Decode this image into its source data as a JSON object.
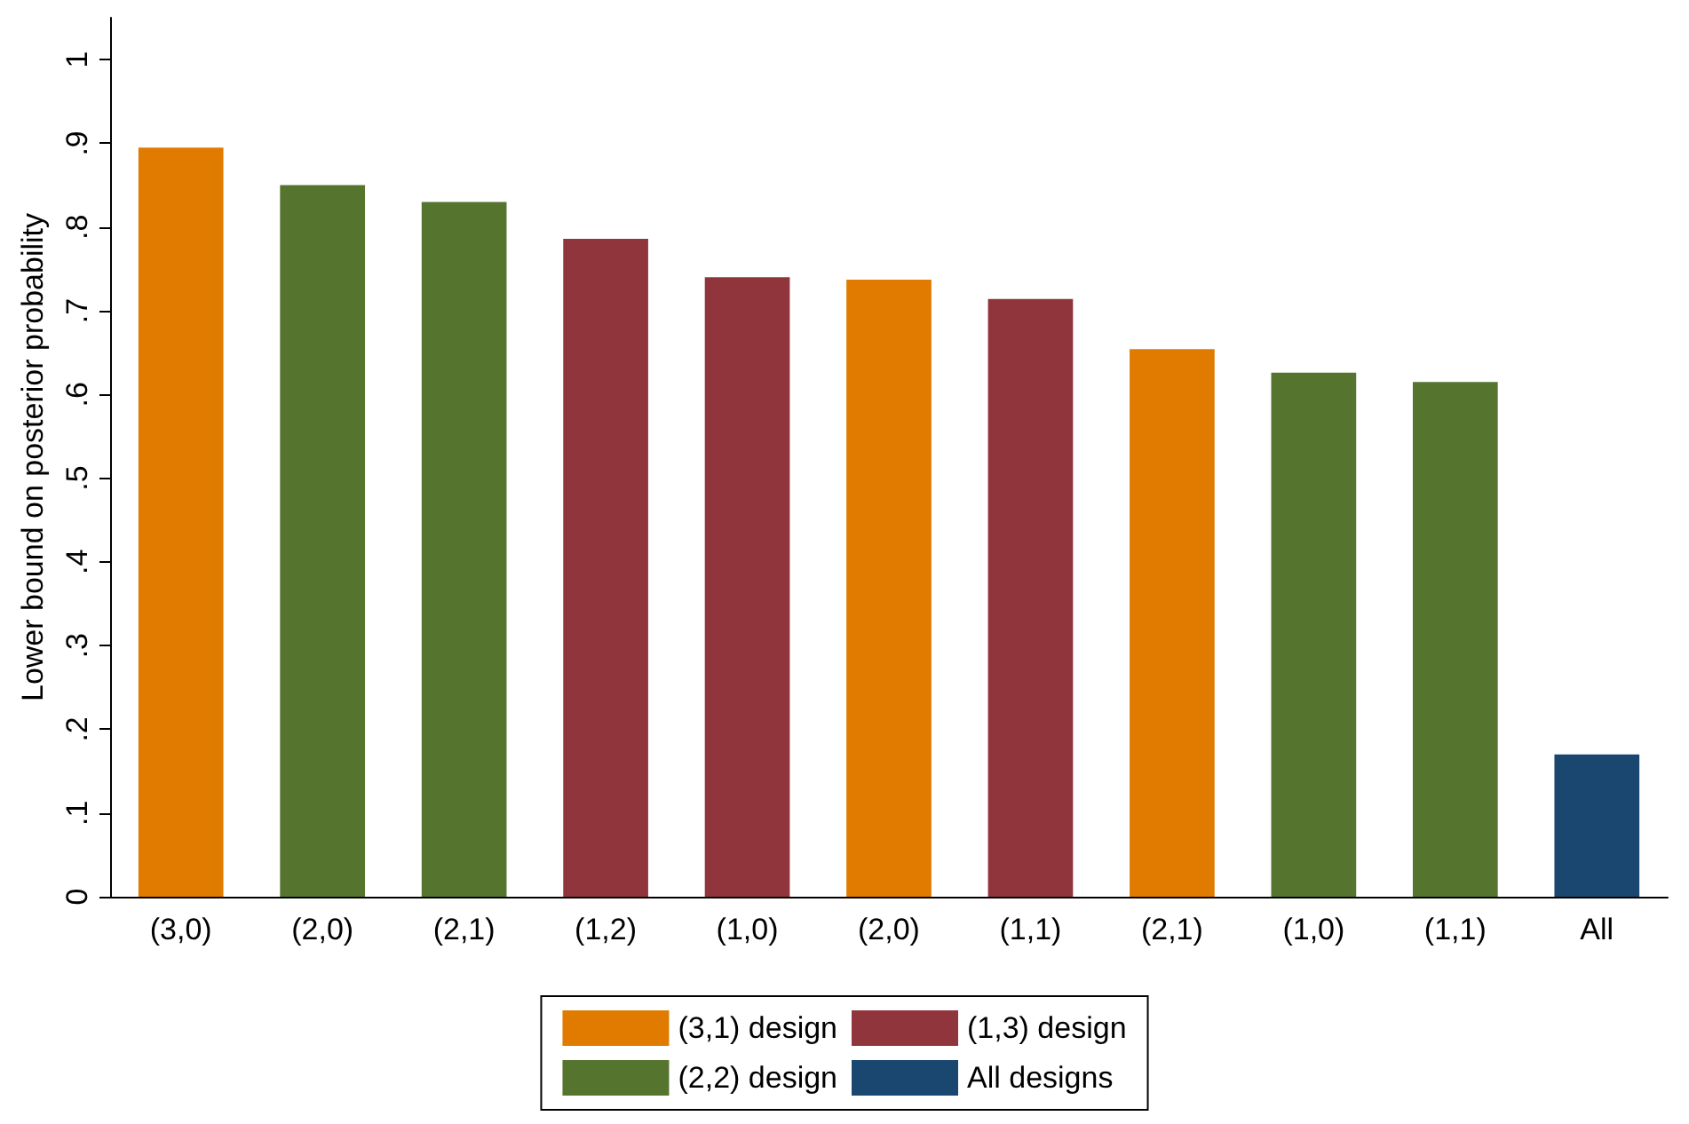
{
  "chart_data": {
    "type": "bar",
    "ylabel": "Lower bound on posterior probability",
    "categories": [
      "(3,0)",
      "(2,0)",
      "(2,1)",
      "(1,2)",
      "(1,0)",
      "(2,0)",
      "(1,1)",
      "(2,1)",
      "(1,0)",
      "(1,1)",
      "All"
    ],
    "stacked": true,
    "series": [
      {
        "name": "(3,1) design",
        "color": "#e07b00",
        "values": [
          0.895,
          null,
          null,
          null,
          null,
          0.737,
          null,
          0.654,
          null,
          null,
          null
        ]
      },
      {
        "name": "(1,3) design",
        "color": "#90353b",
        "values": [
          null,
          null,
          null,
          0.786,
          0.74,
          null,
          0.714,
          null,
          null,
          null,
          null
        ]
      },
      {
        "name": "(2,2) design",
        "color": "#55752f",
        "values": [
          null,
          0.85,
          0.83,
          null,
          null,
          null,
          null,
          null,
          0.626,
          0.615,
          null
        ]
      },
      {
        "name": "All designs",
        "color": "#1a476f",
        "values": [
          null,
          null,
          null,
          null,
          null,
          null,
          null,
          null,
          null,
          null,
          0.17
        ]
      }
    ],
    "ylim": [
      0,
      1.05
    ],
    "yticks": [
      0,
      {
        "value": 0.1,
        "label": ".1"
      },
      {
        "value": 0.2,
        "label": ".2"
      },
      {
        "value": 0.3,
        "label": ".3"
      },
      {
        "value": 0.4,
        "label": ".4"
      },
      {
        "value": 0.5,
        "label": ".5"
      },
      {
        "value": 0.6,
        "label": ".6"
      },
      {
        "value": 0.7,
        "label": ".7"
      },
      {
        "value": 0.8,
        "label": ".8"
      },
      {
        "value": 0.9,
        "label": ".9"
      },
      1
    ],
    "grid": false,
    "legend": "bottom"
  }
}
